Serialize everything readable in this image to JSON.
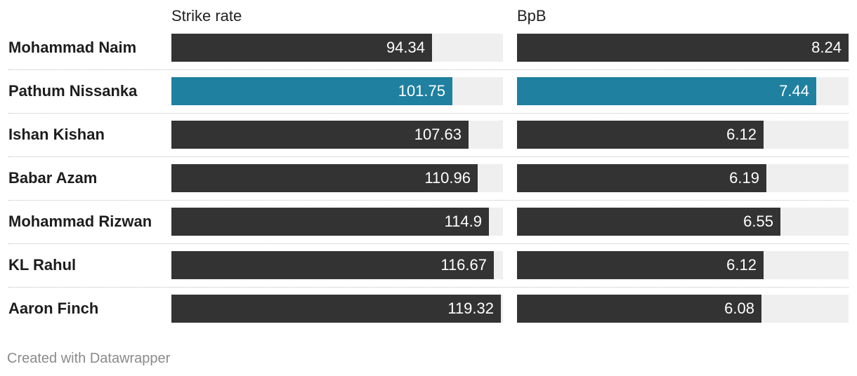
{
  "chart_data": {
    "type": "bar",
    "columns": [
      "Strike rate",
      "BpB"
    ],
    "categories": [
      "Mohammad Naim",
      "Pathum Nissanka",
      "Ishan Kishan",
      "Babar Azam",
      "Mohammad Rizwan",
      "KL Rahul",
      "Aaron Finch"
    ],
    "series": [
      {
        "name": "Strike rate",
        "values": [
          94.34,
          101.75,
          107.63,
          110.96,
          114.9,
          116.67,
          119.32
        ],
        "max": 120
      },
      {
        "name": "BpB",
        "values": [
          8.24,
          7.44,
          6.12,
          6.19,
          6.55,
          6.12,
          6.08
        ],
        "max": 8.24
      }
    ],
    "highlight": "Pathum Nissanka",
    "colors": {
      "bar": "#333333",
      "highlight": "#1f80a0",
      "track": "#efefef"
    }
  },
  "footer": "Created with Datawrapper"
}
